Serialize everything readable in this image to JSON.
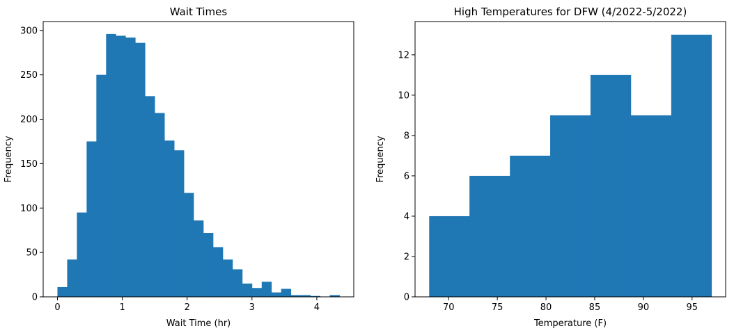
{
  "chart_data": [
    {
      "type": "bar",
      "title": "Wait Times",
      "xlabel": "Wait Time (hr)",
      "ylabel": "Frequency",
      "bin_edges": [
        0.0,
        0.15,
        0.3,
        0.45,
        0.6,
        0.75,
        0.9,
        1.05,
        1.2,
        1.35,
        1.5,
        1.65,
        1.8,
        1.95,
        2.1,
        2.25,
        2.4,
        2.55,
        2.7,
        2.85,
        3.0,
        3.15,
        3.3,
        3.45,
        3.6,
        3.75,
        3.9,
        4.05,
        4.2,
        4.35
      ],
      "values": [
        11,
        42,
        95,
        175,
        250,
        296,
        294,
        292,
        286,
        226,
        207,
        176,
        165,
        117,
        86,
        72,
        56,
        42,
        31,
        15,
        10,
        17,
        5,
        9,
        2,
        2,
        1,
        0,
        2
      ],
      "xlim": [
        -0.22,
        4.57
      ],
      "ylim": [
        0,
        310
      ],
      "xticks": [
        0,
        1,
        2,
        3,
        4
      ],
      "yticks": [
        0,
        50,
        100,
        150,
        200,
        250,
        300
      ],
      "color": "#1f77b4",
      "grid": false
    },
    {
      "type": "bar",
      "title": "High Temperatures for DFW (4/2022-5/2022)",
      "xlabel": "Temperature (F)",
      "ylabel": "Frequency",
      "bin_edges": [
        68,
        72.14,
        76.29,
        80.43,
        84.57,
        88.71,
        92.86,
        97
      ],
      "values": [
        4,
        6,
        7,
        9,
        11,
        9,
        13
      ],
      "xlim": [
        66.55,
        98.45
      ],
      "ylim": [
        0,
        13.65
      ],
      "xticks": [
        70,
        75,
        80,
        85,
        90,
        95
      ],
      "yticks": [
        0,
        2,
        4,
        6,
        8,
        10,
        12
      ],
      "color": "#1f77b4",
      "grid": false
    }
  ]
}
